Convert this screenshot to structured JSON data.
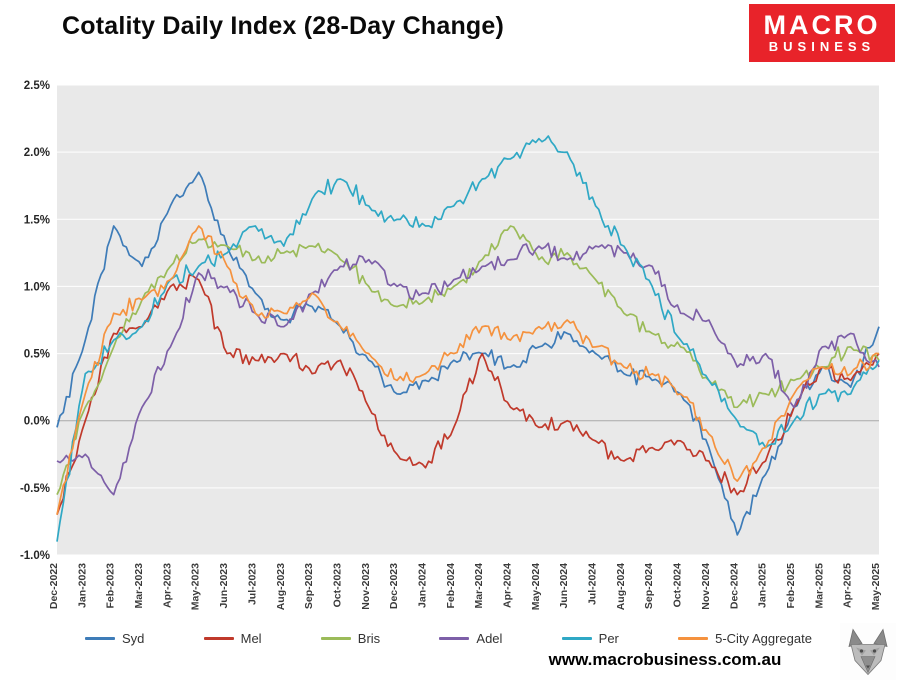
{
  "header": {
    "title": "Cotality Daily Index (28-Day Change)"
  },
  "logo": {
    "line1": "MACRO",
    "line2": "BUSINESS",
    "bg_color": "#e8232a",
    "text_color": "#ffffff"
  },
  "footer": {
    "website": "www.macrobusiness.com.au"
  },
  "chart_data": {
    "type": "line",
    "title": "Cotality Daily Index (28-Day Change)",
    "xlabel": "",
    "ylabel": "",
    "ylim": [
      -1.0,
      2.5
    ],
    "ytick_step": 0.5,
    "yticks": [
      2.5,
      2.0,
      1.5,
      1.0,
      0.5,
      0.0,
      -0.5,
      -1.0
    ],
    "ytick_labels": [
      "2.5%",
      "2.0%",
      "1.5%",
      "1.0%",
      "0.5%",
      "0.0%",
      "-0.5%",
      "-1.0%"
    ],
    "grid": true,
    "plot_bg": "#e9e9e9",
    "gridline_color": "#ffffff",
    "zero_line_color": "#a9a9a9",
    "legend_position": "bottom",
    "x": [
      "Dec-2022",
      "Jan-2023",
      "Feb-2023",
      "Mar-2023",
      "Apr-2023",
      "May-2023",
      "Jun-2023",
      "Jul-2023",
      "Aug-2023",
      "Sep-2023",
      "Oct-2023",
      "Nov-2023",
      "Dec-2023",
      "Jan-2024",
      "Feb-2024",
      "Mar-2024",
      "Apr-2024",
      "May-2024",
      "Jun-2024",
      "Jul-2024",
      "Aug-2024",
      "Sep-2024",
      "Oct-2024",
      "Nov-2024",
      "Dec-2024",
      "Jan-2025",
      "Feb-2025",
      "Mar-2025",
      "Apr-2025",
      "May-2025"
    ],
    "series": [
      {
        "name": "Syd",
        "color": "#3e7cb8",
        "values": [
          -0.05,
          0.6,
          1.45,
          1.15,
          1.6,
          1.85,
          1.3,
          0.95,
          0.75,
          0.85,
          0.7,
          0.45,
          0.2,
          0.3,
          0.45,
          0.5,
          0.4,
          0.55,
          0.65,
          0.5,
          0.35,
          0.3,
          0.2,
          -0.2,
          -0.85,
          -0.4,
          0.1,
          0.4,
          0.25,
          0.7
        ]
      },
      {
        "name": "Mel",
        "color": "#c0392b",
        "values": [
          -0.7,
          0.0,
          0.65,
          0.7,
          1.0,
          1.05,
          0.5,
          0.45,
          0.5,
          0.35,
          0.45,
          0.1,
          -0.25,
          -0.35,
          -0.05,
          0.5,
          0.1,
          -0.05,
          0.0,
          -0.15,
          -0.3,
          -0.2,
          -0.15,
          -0.3,
          -0.55,
          -0.3,
          0.1,
          0.4,
          0.3,
          0.5
        ]
      },
      {
        "name": "Bris",
        "color": "#9bbb59",
        "values": [
          -0.55,
          0.1,
          0.55,
          0.9,
          1.15,
          1.35,
          1.3,
          1.2,
          1.25,
          1.3,
          1.2,
          1.0,
          0.85,
          0.9,
          1.0,
          1.2,
          1.45,
          1.2,
          1.25,
          1.05,
          0.8,
          0.65,
          0.55,
          0.3,
          0.1,
          0.2,
          0.3,
          0.4,
          0.55,
          0.45
        ]
      },
      {
        "name": "Adel",
        "color": "#7d5fa8",
        "values": [
          -0.3,
          -0.25,
          -0.55,
          0.1,
          0.55,
          1.1,
          1.0,
          0.8,
          0.7,
          0.95,
          1.15,
          1.2,
          1.0,
          0.95,
          1.05,
          1.15,
          1.2,
          1.3,
          1.2,
          1.3,
          1.25,
          1.15,
          0.8,
          0.75,
          0.4,
          0.5,
          0.1,
          0.55,
          0.65,
          0.4
        ]
      },
      {
        "name": "Per",
        "color": "#2fa8c5",
        "values": [
          -0.9,
          0.35,
          0.6,
          0.7,
          1.05,
          1.15,
          1.25,
          1.45,
          1.3,
          1.65,
          1.8,
          1.6,
          1.5,
          1.45,
          1.6,
          1.8,
          1.95,
          2.1,
          2.0,
          1.6,
          1.3,
          1.0,
          0.6,
          0.3,
          0.0,
          -0.2,
          0.0,
          0.2,
          0.2,
          0.45
        ]
      },
      {
        "name": "5-City Aggregate",
        "color": "#f5923e",
        "values": [
          -0.7,
          0.2,
          0.8,
          0.9,
          1.05,
          1.45,
          1.15,
          0.8,
          0.8,
          0.95,
          0.7,
          0.5,
          0.3,
          0.35,
          0.5,
          0.7,
          0.6,
          0.7,
          0.75,
          0.55,
          0.4,
          0.35,
          0.2,
          -0.1,
          -0.45,
          -0.2,
          0.2,
          0.4,
          0.35,
          0.5
        ]
      }
    ]
  }
}
